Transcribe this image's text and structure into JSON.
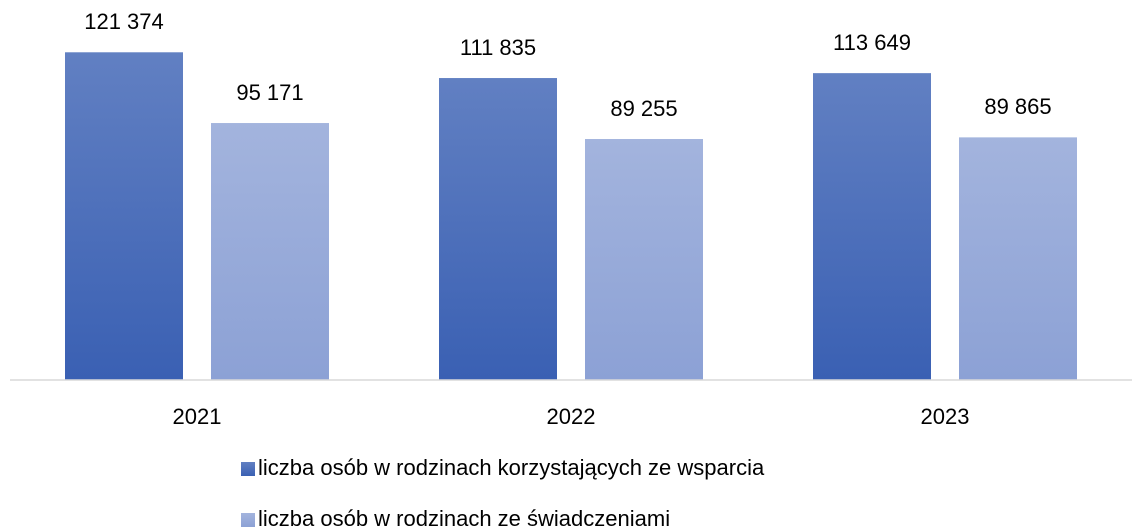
{
  "chart_data": {
    "type": "bar",
    "categories": [
      "2021",
      "2022",
      "2023"
    ],
    "series": [
      {
        "name": "liczba osób w rodzinach korzystających ze wsparcia",
        "color": "#3a60b3",
        "values": [
          121374,
          111835,
          113649
        ],
        "value_labels": [
          "121 374",
          "111 835",
          "113 649"
        ]
      },
      {
        "name": "liczba osób w rodzinach ze świadczeniami",
        "color": "#8ca1d5",
        "values": [
          95171,
          89255,
          89865
        ],
        "value_labels": [
          "95 171",
          "89 255",
          "89 865"
        ]
      }
    ],
    "ylim": [
      0,
      140000
    ],
    "legend": "bottom"
  }
}
